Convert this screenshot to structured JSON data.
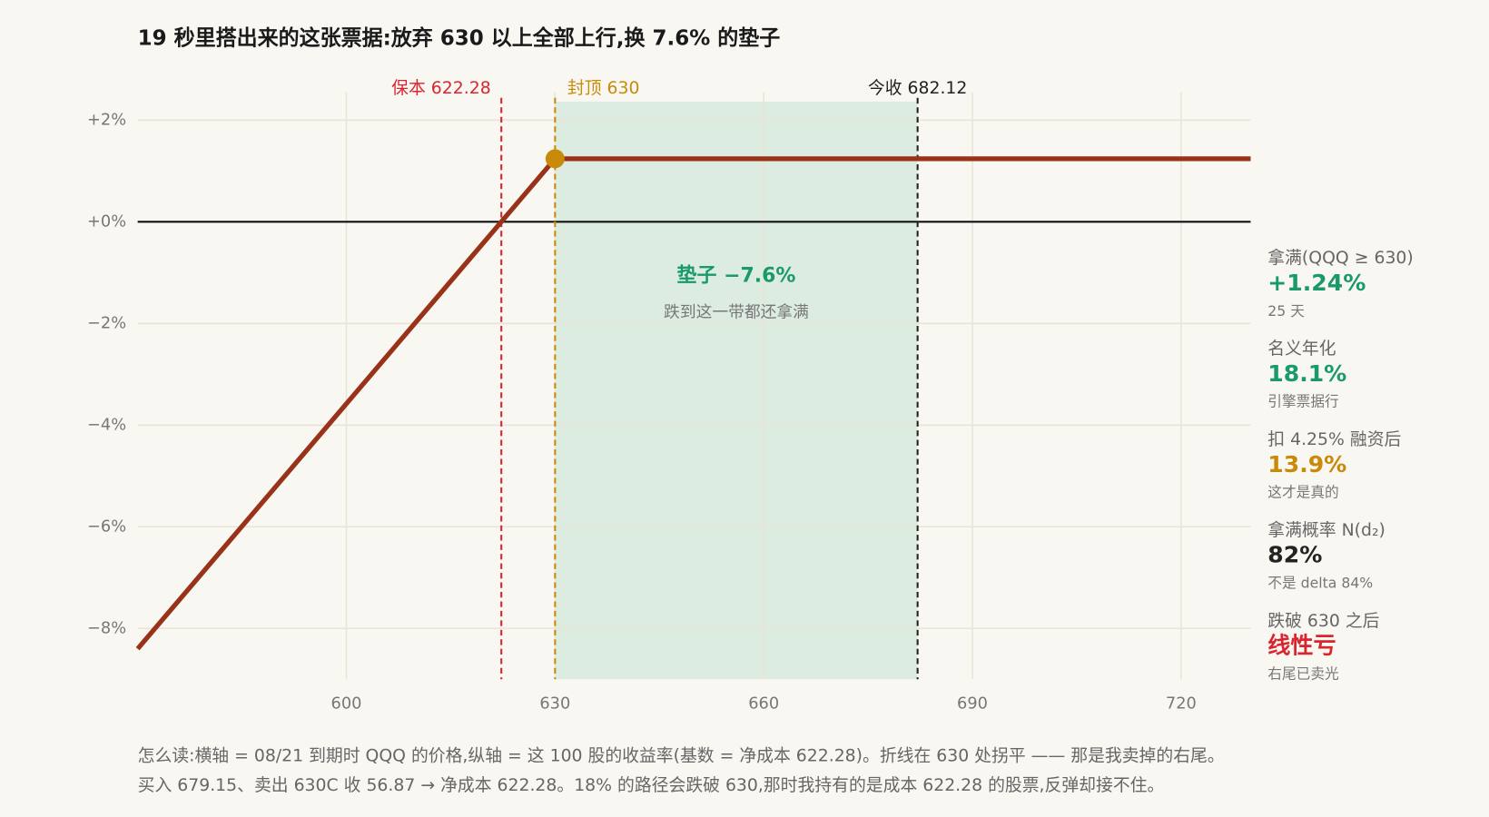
{
  "chart_data": {
    "type": "line",
    "title": "19 秒里搭出来的这张票据:放弃 630 以上全部上行,换 7.6% 的垫子",
    "x": [
      570,
      630,
      730
    ],
    "series": [
      {
        "name": "收益率",
        "color": "#983218",
        "values": [
          -8.4,
          1.24,
          1.24
        ]
      }
    ],
    "xlim": [
      570,
      730
    ],
    "xticks": [
      600,
      630,
      660,
      690,
      720
    ],
    "ylim": [
      -9,
      2.55
    ],
    "yticks": [
      {
        "value": 2,
        "label": "+2%"
      },
      {
        "value": 0,
        "label": "+0%"
      },
      {
        "value": -2,
        "label": "−2%"
      },
      {
        "value": -4,
        "label": "−4%"
      },
      {
        "value": -6,
        "label": "−6%"
      },
      {
        "value": -8,
        "label": "−8%"
      }
    ],
    "grid": true,
    "vlines": [
      {
        "x": 622.28,
        "label": "保本 622.28",
        "color": "#d9252f"
      },
      {
        "x": 630,
        "label": "封顶 630",
        "color": "#c98a0a"
      },
      {
        "x": 682.12,
        "label": "今收 682.12",
        "color": "#222222"
      }
    ],
    "band": {
      "title": "垫子 −7.6%",
      "subtitle": "跌到这一带都还拿满",
      "color": "#1a9a6a"
    },
    "stats": [
      {
        "label": "拿满(QQQ ≥ 630)",
        "value": "+1.24%",
        "note": "25 天",
        "color": "#1a9a6a"
      },
      {
        "label": "名义年化",
        "value": "18.1%",
        "note": "引擎票据行",
        "color": "#1a9a6a"
      },
      {
        "label": "扣 4.25% 融资后",
        "value": "13.9%",
        "note": "这才是真的",
        "color": "#c98a0a"
      },
      {
        "label": "拿满概率 N(d₂)",
        "value": "82%",
        "note": "不是 delta 84%",
        "color": "#222222"
      },
      {
        "label": "跌破 630 之后",
        "value": "线性亏",
        "note": "右尾已卖光",
        "color": "#d9252f"
      }
    ],
    "footnote": [
      "怎么读:横轴 = 08/21 到期时 QQQ 的价格,纵轴 = 这 100 股的收益率(基数 = 净成本 622.28)。折线在 630 处拐平 —— 那是我卖掉的右尾。",
      "买入 679.15、卖出 630C 收 56.87 → 净成本 622.28。18% 的路径会跌破 630,那时我持有的是成本 622.28 的股票,反弹却接不住。"
    ]
  }
}
